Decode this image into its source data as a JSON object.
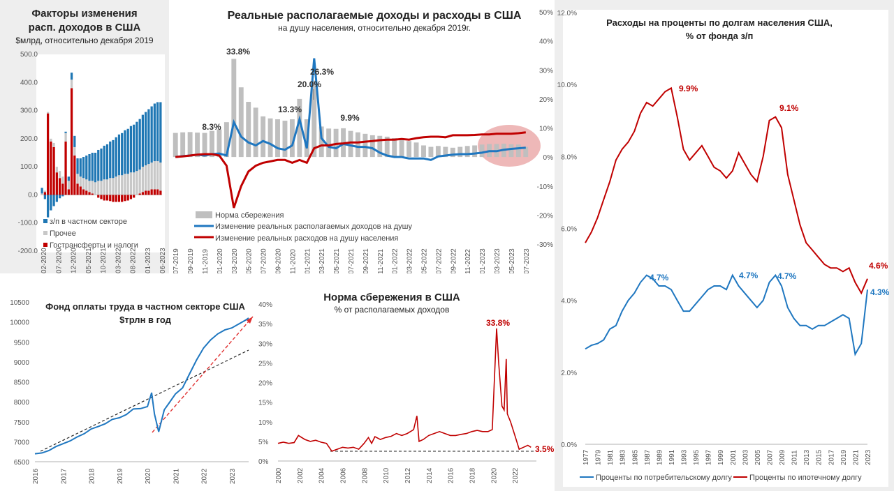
{
  "panels": {
    "factors": {
      "title1": "Факторы изменения",
      "title2": "расп. доходов в США",
      "subtitle": "$млрд, относительно декабря 2019",
      "legend": [
        "з/п в частном секторе",
        "Прочее",
        "Гострансферты и налоги"
      ],
      "colors": {
        "wages": "#1f77b4",
        "other": "#c8c8c8",
        "transfers": "#c00000"
      }
    },
    "income": {
      "title": "Реальные располагаемые доходы и расходы в США",
      "subtitle": "на душу населения, относительно декабря 2019г.",
      "legend": [
        "Норма сбережения",
        "Изменение реальных располагаемых доходов на душу",
        "Изменение реальных расходов на душу населения"
      ],
      "annotations": [
        "33.8%",
        "26.3%",
        "20.0%",
        "13.3%",
        "8.3%",
        "9.9%"
      ],
      "colors": {
        "saving": "#bfbfbf",
        "income": "#1f77c0",
        "spending": "#c00000",
        "highlight": "#e8a0a0"
      }
    },
    "interest": {
      "title1": "Расходы на проценты по долгам населения США,",
      "title2": "% от фонда з/п",
      "legend": [
        "Проценты по потребительскому долгу",
        "Проценты по ипотечному долгу"
      ],
      "annotations": [
        "9.9%",
        "9.1%",
        "4.6%",
        "4.7%",
        "4.7%",
        "4.7%",
        "4.3%"
      ],
      "colors": {
        "consumer": "#1f77c0",
        "mortgage": "#c00000"
      }
    },
    "payroll": {
      "title1": "Фонд оплаты труда в частном секторе США",
      "title2": "$трлн в год",
      "colors": {
        "line": "#1f77c0",
        "trend": "#222222",
        "recovery": "#e03030"
      }
    },
    "saving": {
      "title": "Норма сбережения в США",
      "subtitle": "%  от располагаемых доходов",
      "annotations": [
        "33.8%",
        "3.5%"
      ],
      "colors": {
        "line": "#c00000"
      }
    }
  },
  "chart_data": [
    {
      "type": "bar",
      "id": "factors",
      "title": "Факторы изменения расп. доходов в США",
      "ylim": [
        -200,
        500
      ],
      "yticks": [
        "500.0",
        "400.0",
        "300.0",
        "200.0",
        "100.0",
        "0.0",
        "-100.0",
        "-200.0"
      ],
      "xticks": [
        "02-2020",
        "07-2020",
        "12-2020",
        "05-2021",
        "10-2021",
        "03-2022",
        "08-2022",
        "01-2023",
        "06-2023"
      ],
      "series": [
        {
          "name": "з/п в частном секторе",
          "values": [
            20,
            -15,
            -80,
            -55,
            -40,
            -25,
            -12,
            -5,
            5,
            15,
            25,
            40,
            55,
            65,
            75,
            85,
            95,
            100,
            105,
            110,
            115,
            120,
            125,
            130,
            135,
            140,
            145,
            150,
            155,
            160,
            165,
            170,
            175,
            180,
            185,
            190,
            195,
            200,
            205,
            210,
            215
          ]
        },
        {
          "name": "Прочее",
          "values": [
            5,
            5,
            5,
            10,
            15,
            20,
            25,
            25,
            30,
            30,
            30,
            30,
            35,
            35,
            40,
            40,
            40,
            45,
            45,
            50,
            50,
            55,
            55,
            60,
            60,
            65,
            70,
            70,
            75,
            75,
            80,
            80,
            85,
            85,
            90,
            90,
            95,
            95,
            100,
            100,
            100
          ]
        },
        {
          "name": "Гострансферты и налоги",
          "values": [
            0,
            10,
            290,
            190,
            170,
            80,
            60,
            40,
            190,
            20,
            380,
            140,
            40,
            30,
            20,
            15,
            10,
            5,
            0,
            -10,
            -15,
            -20,
            -20,
            -22,
            -25,
            -25,
            -25,
            -25,
            -22,
            -20,
            -15,
            -10,
            0,
            5,
            10,
            15,
            15,
            20,
            20,
            20,
            15
          ]
        }
      ]
    },
    {
      "type": "line",
      "id": "income",
      "title": "Реальные располагаемые доходы и расходы в США",
      "ylim": [
        -30,
        50
      ],
      "yticks": [
        "50%",
        "40%",
        "30%",
        "20%",
        "10%",
        "0%",
        "-10%",
        "-20%",
        "-30%"
      ],
      "xticks": [
        "07-2019",
        "09-2019",
        "11-2019",
        "01-2020",
        "03-2020",
        "05-2020",
        "07-2020",
        "09-2020",
        "11-2020",
        "01-2021",
        "03-2021",
        "05-2021",
        "07-2021",
        "09-2021",
        "11-2021",
        "01-2022",
        "03-2022",
        "05-2022",
        "07-2022",
        "09-2022",
        "11-2022",
        "01-2023",
        "03-2023",
        "05-2023",
        "07-2023"
      ],
      "series": [
        {
          "name": "Норма сбережения",
          "values": [
            8.3,
            8.5,
            8.6,
            8.4,
            8.3,
            9.0,
            9.5,
            12.0,
            33.8,
            24.0,
            19.0,
            17.0,
            14.0,
            13.3,
            13.0,
            12.5,
            13.0,
            20.0,
            13.0,
            26.3,
            10.5,
            9.8,
            9.7,
            9.9,
            9.0,
            8.5,
            8.0,
            7.5,
            7.3,
            7.0,
            6.5,
            6.0,
            5.5,
            5.0,
            4.0,
            3.5,
            3.8,
            3.5,
            3.2,
            3.5,
            3.8,
            4.0,
            4.3,
            4.5,
            4.5,
            4.6,
            4.4,
            4.3,
            3.5
          ]
        },
        {
          "name": "Изменение реальных располагаемых доходов на душу",
          "values": [
            0,
            0.3,
            0.5,
            0.8,
            0.5,
            1.0,
            1.2,
            0.5,
            12.0,
            7.0,
            5.0,
            4.0,
            5.5,
            4.5,
            3.0,
            2.5,
            4.0,
            13.0,
            3.0,
            34.0,
            6.5,
            3.5,
            3.0,
            4.5,
            4.0,
            3.5,
            3.5,
            3.0,
            1.5,
            0.5,
            0,
            0,
            -0.5,
            -0.5,
            -0.5,
            -1.0,
            0.2,
            0.5,
            0.8,
            1.0,
            1.0,
            1.2,
            1.5,
            2.0,
            2.0,
            2.5,
            2.8,
            3.0,
            3.2
          ]
        },
        {
          "name": "Изменение реальных расходов на душу населения",
          "values": [
            0,
            0.2,
            0.5,
            0.8,
            1.0,
            1.0,
            0.5,
            -3.0,
            -17.5,
            -10.0,
            -5.0,
            -3.0,
            -2.0,
            -1.5,
            -1.0,
            -1.0,
            -2.0,
            -1.0,
            -2.0,
            3.0,
            4.0,
            4.0,
            4.5,
            4.7,
            5.0,
            5.0,
            5.3,
            5.5,
            5.8,
            6.0,
            6.0,
            6.2,
            6.0,
            6.5,
            6.8,
            7.0,
            7.0,
            6.8,
            7.5,
            7.5,
            7.5,
            7.6,
            7.8,
            7.8,
            8.0,
            8.0,
            8.0,
            8.2,
            8.5
          ]
        }
      ]
    },
    {
      "type": "line",
      "id": "interest",
      "title": "Расходы на проценты по долгам населения США, % от фонда з/п",
      "ylim": [
        0,
        12
      ],
      "yticks": [
        "12.0%",
        "10.0%",
        "8.0%",
        "6.0%",
        "4.0%",
        "2.0%",
        "0.0%"
      ],
      "xticks": [
        "1977",
        "1979",
        "1981",
        "1983",
        "1985",
        "1987",
        "1989",
        "1991",
        "1993",
        "1995",
        "1997",
        "1999",
        "2001",
        "2003",
        "2005",
        "2007",
        "2009",
        "2011",
        "2013",
        "2015",
        "2017",
        "2019",
        "2021",
        "2023"
      ],
      "x": [
        1977,
        1978,
        1979,
        1980,
        1981,
        1982,
        1983,
        1984,
        1985,
        1986,
        1987,
        1988,
        1989,
        1990,
        1991,
        1992,
        1993,
        1994,
        1995,
        1996,
        1997,
        1998,
        1999,
        2000,
        2001,
        2002,
        2003,
        2004,
        2005,
        2006,
        2007,
        2008,
        2009,
        2010,
        2011,
        2012,
        2013,
        2014,
        2015,
        2016,
        2017,
        2018,
        2019,
        2020,
        2021,
        2022,
        2023
      ],
      "series": [
        {
          "name": "Проценты по потребительскому долгу",
          "values": [
            2.65,
            2.75,
            2.8,
            2.9,
            3.2,
            3.3,
            3.7,
            4.0,
            4.2,
            4.5,
            4.7,
            4.6,
            4.4,
            4.4,
            4.3,
            4.0,
            3.7,
            3.7,
            3.9,
            4.1,
            4.3,
            4.4,
            4.4,
            4.3,
            4.7,
            4.4,
            4.2,
            4.0,
            3.8,
            4.0,
            4.5,
            4.7,
            4.4,
            3.8,
            3.5,
            3.3,
            3.3,
            3.2,
            3.3,
            3.3,
            3.4,
            3.5,
            3.6,
            3.5,
            2.5,
            2.8,
            4.3
          ]
        },
        {
          "name": "Проценты по ипотечному долгу",
          "values": [
            5.6,
            5.9,
            6.3,
            6.8,
            7.3,
            7.9,
            8.2,
            8.4,
            8.7,
            9.2,
            9.5,
            9.4,
            9.6,
            9.8,
            9.9,
            9.1,
            8.2,
            7.9,
            8.1,
            8.3,
            8.0,
            7.7,
            7.6,
            7.4,
            7.6,
            8.1,
            7.8,
            7.5,
            7.3,
            8.0,
            9.0,
            9.1,
            8.8,
            7.5,
            6.8,
            6.1,
            5.6,
            5.4,
            5.2,
            5.0,
            4.9,
            4.9,
            4.8,
            4.9,
            4.5,
            4.2,
            4.6
          ]
        }
      ]
    },
    {
      "type": "line",
      "id": "payroll",
      "title": "Фонд оплаты труда в частном секторе США $трлн в год",
      "ylim": [
        6500,
        10500
      ],
      "yticks": [
        "10500",
        "10000",
        "9500",
        "9000",
        "8500",
        "8000",
        "7500",
        "7000",
        "6500"
      ],
      "xticks": [
        "2016",
        "2017",
        "2018",
        "2019",
        "2020",
        "2021",
        "2022",
        "2023"
      ],
      "x": [
        2016.0,
        2016.25,
        2016.5,
        2016.75,
        2017.0,
        2017.25,
        2017.5,
        2017.75,
        2018.0,
        2018.25,
        2018.5,
        2018.75,
        2019.0,
        2019.25,
        2019.5,
        2019.75,
        2020.0,
        2020.15,
        2020.25,
        2020.4,
        2020.6,
        2020.75,
        2021.0,
        2021.25,
        2021.5,
        2021.75,
        2022.0,
        2022.25,
        2022.5,
        2022.75,
        2023.0,
        2023.25,
        2023.5,
        2023.6
      ],
      "series": [
        {
          "name": "Фонд оплаты труда",
          "values": [
            6700,
            6720,
            6780,
            6880,
            6950,
            7020,
            7120,
            7200,
            7320,
            7380,
            7450,
            7560,
            7600,
            7680,
            7820,
            7830,
            7880,
            8230,
            7700,
            7250,
            7800,
            7950,
            8200,
            8350,
            8700,
            9050,
            9350,
            9550,
            9700,
            9800,
            9850,
            9950,
            10050,
            10100
          ]
        }
      ]
    },
    {
      "type": "line",
      "id": "saving",
      "title": "Норма сбережения в США",
      "ylim": [
        0,
        40
      ],
      "yticks": [
        "40%",
        "35%",
        "30%",
        "25%",
        "20%",
        "15%",
        "10%",
        "5%",
        "0%"
      ],
      "xticks": [
        "2000",
        "2002",
        "2004",
        "2006",
        "2008",
        "2010",
        "2012",
        "2014",
        "2016",
        "2018",
        "2020",
        "2022"
      ],
      "x": [
        2000,
        2000.5,
        2001,
        2001.5,
        2001.9,
        2002.5,
        2003,
        2003.5,
        2004,
        2004.5,
        2005,
        2005.5,
        2006,
        2006.5,
        2007,
        2007.5,
        2008,
        2008.4,
        2008.7,
        2009,
        2009.5,
        2010,
        2010.5,
        2011,
        2011.5,
        2012,
        2012.6,
        2012.9,
        2013.1,
        2013.5,
        2014,
        2014.5,
        2015,
        2015.5,
        2016,
        2016.5,
        2017,
        2017.5,
        2018,
        2018.5,
        2019,
        2019.5,
        2019.9,
        2020.3,
        2020.5,
        2020.8,
        2021.0,
        2021.2,
        2021.3,
        2021.6,
        2022,
        2022.4,
        2022.8,
        2023.2,
        2023.5
      ],
      "series": [
        {
          "name": "Норма сбережения",
          "values": [
            4.5,
            4.8,
            4.5,
            4.7,
            6.5,
            5.5,
            5.0,
            5.3,
            4.8,
            4.5,
            2.5,
            3.0,
            3.5,
            3.3,
            3.5,
            3.0,
            4.5,
            6.0,
            4.5,
            6.2,
            5.5,
            6.0,
            6.3,
            7.0,
            6.5,
            7.0,
            8.0,
            11.5,
            5.0,
            5.5,
            6.5,
            7.0,
            7.5,
            7.0,
            6.5,
            6.5,
            6.8,
            7.0,
            7.5,
            7.8,
            7.5,
            7.5,
            8.0,
            33.8,
            25.0,
            14.0,
            13.0,
            26.0,
            12.0,
            10.0,
            6.5,
            3.0,
            3.5,
            4.0,
            3.5
          ]
        }
      ]
    }
  ]
}
